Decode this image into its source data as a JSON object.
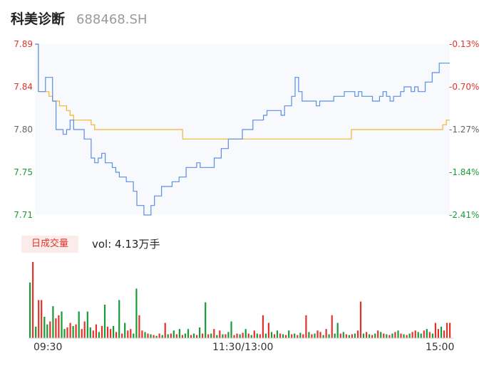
{
  "header": {
    "name": "科美诊断",
    "code": "688468.SH"
  },
  "chart_data": {
    "type": "line",
    "series": [
      {
        "values": [
          7.89,
          7.84,
          7.84,
          7.855,
          7.855,
          7.83,
          7.8,
          7.8,
          7.795,
          7.8,
          7.81,
          7.8,
          7.8,
          7.8,
          7.79,
          7.79,
          7.77,
          7.765,
          7.77,
          7.775,
          7.765,
          7.765,
          7.76,
          7.755,
          7.75,
          7.75,
          7.745,
          7.745,
          7.735,
          7.72,
          7.72,
          7.71,
          7.71,
          7.72,
          7.73,
          7.73,
          7.74,
          7.74,
          7.74,
          7.745,
          7.745,
          7.75,
          7.75,
          7.76,
          7.76,
          7.76,
          7.765,
          7.76,
          7.76,
          7.76,
          7.76,
          7.77,
          7.77,
          7.78,
          7.78,
          7.79,
          7.79,
          7.79,
          7.79,
          7.8,
          7.8,
          7.8,
          7.81,
          7.81,
          7.81,
          7.815,
          7.82,
          7.82,
          7.82,
          7.82,
          7.815,
          7.825,
          7.825,
          7.835,
          7.855,
          7.84,
          7.83,
          7.83,
          7.83,
          7.83,
          7.825,
          7.83,
          7.83,
          7.83,
          7.83,
          7.835,
          7.835,
          7.835,
          7.84,
          7.84,
          7.84,
          7.835,
          7.84,
          7.835,
          7.835,
          7.835,
          7.83,
          7.83,
          7.835,
          7.84,
          7.835,
          7.83,
          7.835,
          7.835,
          7.84,
          7.845,
          7.845,
          7.84,
          7.845,
          7.84,
          7.84,
          7.85,
          7.85,
          7.86,
          7.86,
          7.87,
          7.87,
          7.87
        ]
      },
      {
        "values": [
          7.89,
          7.84,
          7.84,
          7.84,
          7.835,
          7.83,
          7.83,
          7.825,
          7.825,
          7.82,
          7.815,
          7.81,
          7.81,
          7.81,
          7.81,
          7.81,
          7.805,
          7.8,
          7.8,
          7.8,
          7.8,
          7.8,
          7.8,
          7.8,
          7.8,
          7.8,
          7.8,
          7.8,
          7.8,
          7.8,
          7.8,
          7.8,
          7.8,
          7.8,
          7.8,
          7.8,
          7.8,
          7.8,
          7.8,
          7.8,
          7.8,
          7.8,
          7.79,
          7.79,
          7.79,
          7.79,
          7.79,
          7.79,
          7.79,
          7.79,
          7.79,
          7.79,
          7.79,
          7.79,
          7.79,
          7.79,
          7.79,
          7.79,
          7.79,
          7.79,
          7.79,
          7.79,
          7.79,
          7.79,
          7.79,
          7.79,
          7.79,
          7.79,
          7.79,
          7.79,
          7.79,
          7.79,
          7.79,
          7.79,
          7.79,
          7.79,
          7.79,
          7.79,
          7.79,
          7.79,
          7.79,
          7.79,
          7.79,
          7.79,
          7.79,
          7.79,
          7.79,
          7.79,
          7.79,
          7.79,
          7.8,
          7.8,
          7.8,
          7.8,
          7.8,
          7.8,
          7.8,
          7.8,
          7.8,
          7.8,
          7.8,
          7.8,
          7.8,
          7.8,
          7.8,
          7.8,
          7.8,
          7.8,
          7.8,
          7.8,
          7.8,
          7.8,
          7.8,
          7.8,
          7.8,
          7.8,
          7.805,
          7.81
        ]
      }
    ],
    "price_ticks": [
      "7.89",
      "7.84",
      "7.80",
      "7.75",
      "7.71"
    ],
    "pct_ticks": [
      "-0.13%",
      "-0.70%",
      "-1.27%",
      "-1.84%",
      "-2.41%"
    ],
    "ylim": [
      7.71,
      7.89
    ],
    "x_ticks": [
      "09:30",
      "11:30/13:00",
      "15:00"
    ],
    "volume": {
      "label": "日成交量",
      "summary": "vol: 4.13万手",
      "bars": [
        {
          "v": 0.73,
          "c": "g"
        },
        {
          "v": 1.0,
          "c": "r"
        },
        {
          "v": 0.15,
          "c": "g"
        },
        {
          "v": 0.5,
          "c": "r"
        },
        {
          "v": 0.5,
          "c": "r"
        },
        {
          "v": 0.28,
          "c": "g"
        },
        {
          "v": 0.18,
          "c": "g"
        },
        {
          "v": 0.22,
          "c": "r"
        },
        {
          "v": 0.42,
          "c": "g"
        },
        {
          "v": 0.26,
          "c": "r"
        },
        {
          "v": 0.3,
          "c": "r"
        },
        {
          "v": 0.35,
          "c": "g"
        },
        {
          "v": 0.12,
          "c": "g"
        },
        {
          "v": 0.14,
          "c": "r"
        },
        {
          "v": 0.2,
          "c": "r"
        },
        {
          "v": 0.16,
          "c": "g"
        },
        {
          "v": 0.18,
          "c": "r"
        },
        {
          "v": 0.35,
          "c": "g"
        },
        {
          "v": 0.12,
          "c": "r"
        },
        {
          "v": 0.22,
          "c": "r"
        },
        {
          "v": 0.35,
          "c": "g"
        },
        {
          "v": 0.14,
          "c": "g"
        },
        {
          "v": 0.1,
          "c": "r"
        },
        {
          "v": 0.18,
          "c": "r"
        },
        {
          "v": 0.08,
          "c": "g"
        },
        {
          "v": 0.16,
          "c": "r"
        },
        {
          "v": 0.44,
          "c": "g"
        },
        {
          "v": 0.15,
          "c": "r"
        },
        {
          "v": 0.12,
          "c": "r"
        },
        {
          "v": 0.16,
          "c": "g"
        },
        {
          "v": 0.08,
          "c": "r"
        },
        {
          "v": 0.5,
          "c": "g"
        },
        {
          "v": 0.06,
          "c": "r"
        },
        {
          "v": 0.2,
          "c": "g"
        },
        {
          "v": 0.1,
          "c": "r"
        },
        {
          "v": 0.12,
          "c": "r"
        },
        {
          "v": 0.06,
          "c": "g"
        },
        {
          "v": 0.65,
          "c": "g"
        },
        {
          "v": 0.3,
          "c": "r"
        },
        {
          "v": 0.1,
          "c": "r"
        },
        {
          "v": 0.08,
          "c": "g"
        },
        {
          "v": 0.06,
          "c": "r"
        },
        {
          "v": 0.05,
          "c": "g"
        },
        {
          "v": 0.04,
          "c": "r"
        },
        {
          "v": 0.03,
          "c": "g"
        },
        {
          "v": 0.06,
          "c": "r"
        },
        {
          "v": 0.04,
          "c": "g"
        },
        {
          "v": 0.2,
          "c": "r"
        },
        {
          "v": 0.05,
          "c": "g"
        },
        {
          "v": 0.06,
          "c": "r"
        },
        {
          "v": 0.1,
          "c": "g"
        },
        {
          "v": 0.05,
          "c": "r"
        },
        {
          "v": 0.12,
          "c": "g"
        },
        {
          "v": 0.04,
          "c": "r"
        },
        {
          "v": 0.06,
          "c": "g"
        },
        {
          "v": 0.12,
          "c": "g"
        },
        {
          "v": 0.04,
          "c": "r"
        },
        {
          "v": 0.06,
          "c": "g"
        },
        {
          "v": 0.04,
          "c": "r"
        },
        {
          "v": 0.14,
          "c": "g"
        },
        {
          "v": 0.06,
          "c": "r"
        },
        {
          "v": 0.47,
          "c": "g"
        },
        {
          "v": 0.05,
          "c": "r"
        },
        {
          "v": 0.06,
          "c": "g"
        },
        {
          "v": 0.12,
          "c": "r"
        },
        {
          "v": 0.04,
          "c": "g"
        },
        {
          "v": 0.1,
          "c": "r"
        },
        {
          "v": 0.05,
          "c": "g"
        },
        {
          "v": 0.05,
          "c": "r"
        },
        {
          "v": 0.08,
          "c": "g"
        },
        {
          "v": 0.22,
          "c": "g"
        },
        {
          "v": 0.04,
          "c": "r"
        },
        {
          "v": 0.06,
          "c": "r"
        },
        {
          "v": 0.05,
          "c": "g"
        },
        {
          "v": 0.07,
          "c": "r"
        },
        {
          "v": 0.12,
          "c": "g"
        },
        {
          "v": 0.06,
          "c": "r"
        },
        {
          "v": 0.04,
          "c": "g"
        },
        {
          "v": 0.1,
          "c": "r"
        },
        {
          "v": 0.06,
          "c": "g"
        },
        {
          "v": 0.05,
          "c": "r"
        },
        {
          "v": 0.3,
          "c": "r"
        },
        {
          "v": 0.06,
          "c": "g"
        },
        {
          "v": 0.2,
          "c": "r"
        },
        {
          "v": 0.08,
          "c": "g"
        },
        {
          "v": 0.05,
          "c": "r"
        },
        {
          "v": 0.1,
          "c": "g"
        },
        {
          "v": 0.06,
          "c": "r"
        },
        {
          "v": 0.05,
          "c": "g"
        },
        {
          "v": 0.04,
          "c": "r"
        },
        {
          "v": 0.1,
          "c": "g"
        },
        {
          "v": 0.05,
          "c": "r"
        },
        {
          "v": 0.06,
          "c": "g"
        },
        {
          "v": 0.04,
          "c": "r"
        },
        {
          "v": 0.07,
          "c": "g"
        },
        {
          "v": 0.05,
          "c": "r"
        },
        {
          "v": 0.3,
          "c": "r"
        },
        {
          "v": 0.08,
          "c": "g"
        },
        {
          "v": 0.05,
          "c": "r"
        },
        {
          "v": 0.06,
          "c": "g"
        },
        {
          "v": 0.1,
          "c": "r"
        },
        {
          "v": 0.08,
          "c": "r"
        },
        {
          "v": 0.04,
          "c": "g"
        },
        {
          "v": 0.12,
          "c": "r"
        },
        {
          "v": 0.05,
          "c": "g"
        },
        {
          "v": 0.3,
          "c": "r"
        },
        {
          "v": 0.06,
          "c": "g"
        },
        {
          "v": 0.2,
          "c": "g"
        },
        {
          "v": 0.06,
          "c": "r"
        },
        {
          "v": 0.08,
          "c": "g"
        },
        {
          "v": 0.05,
          "c": "r"
        },
        {
          "v": 0.04,
          "c": "g"
        },
        {
          "v": 0.05,
          "c": "r"
        },
        {
          "v": 0.06,
          "c": "g"
        },
        {
          "v": 0.1,
          "c": "r"
        },
        {
          "v": 0.48,
          "c": "r"
        },
        {
          "v": 0.06,
          "c": "g"
        },
        {
          "v": 0.08,
          "c": "r"
        },
        {
          "v": 0.05,
          "c": "g"
        },
        {
          "v": 0.04,
          "c": "r"
        },
        {
          "v": 0.06,
          "c": "g"
        },
        {
          "v": 0.1,
          "c": "r"
        },
        {
          "v": 0.08,
          "c": "g"
        },
        {
          "v": 0.06,
          "c": "r"
        },
        {
          "v": 0.05,
          "c": "g"
        },
        {
          "v": 0.04,
          "c": "r"
        },
        {
          "v": 0.06,
          "c": "g"
        },
        {
          "v": 0.08,
          "c": "r"
        },
        {
          "v": 0.1,
          "c": "g"
        },
        {
          "v": 0.06,
          "c": "r"
        },
        {
          "v": 0.05,
          "c": "g"
        },
        {
          "v": 0.04,
          "c": "r"
        },
        {
          "v": 0.06,
          "c": "g"
        },
        {
          "v": 0.08,
          "c": "r"
        },
        {
          "v": 0.1,
          "c": "r"
        },
        {
          "v": 0.08,
          "c": "g"
        },
        {
          "v": 0.06,
          "c": "g"
        },
        {
          "v": 0.1,
          "c": "r"
        },
        {
          "v": 0.12,
          "c": "g"
        },
        {
          "v": 0.08,
          "c": "r"
        },
        {
          "v": 0.06,
          "c": "g"
        },
        {
          "v": 0.2,
          "c": "r"
        },
        {
          "v": 0.12,
          "c": "r"
        },
        {
          "v": 0.15,
          "c": "g"
        },
        {
          "v": 0.1,
          "c": "r"
        },
        {
          "v": 0.2,
          "c": "r"
        },
        {
          "v": 0.2,
          "c": "r"
        }
      ]
    }
  }
}
